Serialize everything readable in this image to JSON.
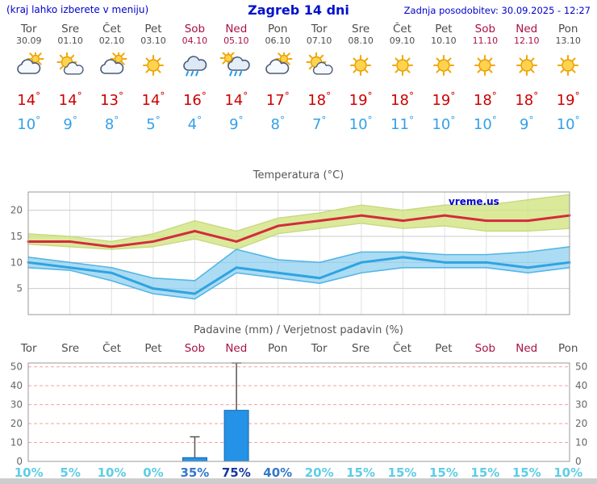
{
  "header": {
    "left_note": "(kraj lahko izberete v meniju)",
    "title": "Zagreb 14 dni",
    "updated": "Zadnja posodobitev: 30.09.2025 - 12:27"
  },
  "colors": {
    "link_blue": "#0000cc",
    "weekend_red": "#aa1144",
    "tmax_red": "#cc0000",
    "tmin_blue": "#33a0e8",
    "bar_blue": "#2492e6",
    "band_green": "rgba(210,228,130,0.8)",
    "band_blue": "rgba(135,205,240,0.7)"
  },
  "days": [
    {
      "name": "Tor",
      "date": "30.09",
      "weekend": false,
      "icon": "mostly-cloudy",
      "tmax": "14",
      "tmin": "10",
      "prob": "10%",
      "prob_level": "low"
    },
    {
      "name": "Sre",
      "date": "01.10",
      "weekend": false,
      "icon": "partly-cloudy",
      "tmax": "14",
      "tmin": "9",
      "prob": "5%",
      "prob_level": "low"
    },
    {
      "name": "Čet",
      "date": "02.10",
      "weekend": false,
      "icon": "mostly-cloudy",
      "tmax": "13",
      "tmin": "8",
      "prob": "10%",
      "prob_level": "low"
    },
    {
      "name": "Pet",
      "date": "03.10",
      "weekend": false,
      "icon": "sun",
      "tmax": "14",
      "tmin": "5",
      "prob": "0%",
      "prob_level": "low"
    },
    {
      "name": "Sob",
      "date": "04.10",
      "weekend": true,
      "icon": "rain",
      "tmax": "16",
      "tmin": "4",
      "prob": "35%",
      "prob_level": "mid"
    },
    {
      "name": "Ned",
      "date": "05.10",
      "weekend": true,
      "icon": "rain-sun",
      "tmax": "14",
      "tmin": "9",
      "prob": "75%",
      "prob_level": "high"
    },
    {
      "name": "Pon",
      "date": "06.10",
      "weekend": false,
      "icon": "mostly-cloudy",
      "tmax": "17",
      "tmin": "8",
      "prob": "40%",
      "prob_level": "mid"
    },
    {
      "name": "Tor",
      "date": "07.10",
      "weekend": false,
      "icon": "partly-cloudy",
      "tmax": "18",
      "tmin": "7",
      "prob": "20%",
      "prob_level": "low"
    },
    {
      "name": "Sre",
      "date": "08.10",
      "weekend": false,
      "icon": "sun",
      "tmax": "19",
      "tmin": "10",
      "prob": "15%",
      "prob_level": "low"
    },
    {
      "name": "Čet",
      "date": "09.10",
      "weekend": false,
      "icon": "sun",
      "tmax": "18",
      "tmin": "11",
      "prob": "15%",
      "prob_level": "low"
    },
    {
      "name": "Pet",
      "date": "10.10",
      "weekend": false,
      "icon": "sun",
      "tmax": "19",
      "tmin": "10",
      "prob": "15%",
      "prob_level": "low"
    },
    {
      "name": "Sob",
      "date": "11.10",
      "weekend": true,
      "icon": "sun",
      "tmax": "18",
      "tmin": "10",
      "prob": "15%",
      "prob_level": "low"
    },
    {
      "name": "Ned",
      "date": "12.10",
      "weekend": true,
      "icon": "sun",
      "tmax": "18",
      "tmin": "9",
      "prob": "15%",
      "prob_level": "low"
    },
    {
      "name": "Pon",
      "date": "13.10",
      "weekend": false,
      "icon": "sun",
      "tmax": "19",
      "tmin": "10",
      "prob": "10%",
      "prob_level": "low"
    }
  ],
  "chart_data": [
    {
      "type": "line",
      "title": "Temperatura (°C)",
      "watermark": "vreme.us",
      "x": [
        "Tor 30.09",
        "Sre 01.10",
        "Čet 02.10",
        "Pet 03.10",
        "Sob 04.10",
        "Ned 05.10",
        "Pon 06.10",
        "Tor 07.10",
        "Sre 08.10",
        "Čet 09.10",
        "Pet 10.10",
        "Sob 11.10",
        "Ned 12.10",
        "Pon 13.10"
      ],
      "series": [
        {
          "name": "tmax",
          "color": "#d22c3c",
          "values": [
            14,
            14,
            13,
            14,
            16,
            14,
            17,
            18,
            19,
            18,
            19,
            18,
            18,
            19
          ]
        },
        {
          "name": "tmax_upper",
          "color": "#c6d87c",
          "values": [
            15.5,
            15,
            14,
            15.5,
            18,
            16,
            18.5,
            19.5,
            21,
            20,
            21,
            21,
            22,
            23
          ]
        },
        {
          "name": "tmax_lower",
          "color": "#c6d87c",
          "values": [
            13.5,
            13,
            12.5,
            13,
            14.5,
            12.5,
            15.5,
            16.5,
            17.5,
            16.5,
            17,
            16,
            16,
            16.5
          ]
        },
        {
          "name": "tmin",
          "color": "#2fa3e0",
          "values": [
            10,
            9,
            8,
            5,
            4,
            9,
            8,
            7,
            10,
            11,
            10,
            10,
            9,
            10
          ]
        },
        {
          "name": "tmin_upper",
          "color": "#55b5e5",
          "values": [
            11,
            10,
            9,
            7,
            6.5,
            12.5,
            10.5,
            10,
            12,
            12,
            11.5,
            11.5,
            12,
            13
          ]
        },
        {
          "name": "tmin_lower",
          "color": "#55b5e5",
          "values": [
            9,
            8.5,
            6.5,
            4,
            3,
            8,
            7,
            6,
            8,
            9,
            9,
            9,
            8,
            9
          ]
        }
      ],
      "ylim": [
        0,
        23.5
      ],
      "yticks": [
        5,
        10,
        15,
        20
      ],
      "grid": true,
      "legend": "none"
    },
    {
      "type": "bar",
      "title": "Padavine (mm) / Verjetnost padavin (%)",
      "categories": [
        "Tor",
        "Sre",
        "Čet",
        "Pet",
        "Sob",
        "Ned",
        "Pon",
        "Tor",
        "Sre",
        "Čet",
        "Pet",
        "Sob",
        "Ned",
        "Pon"
      ],
      "weekend_flags": [
        false,
        false,
        false,
        false,
        true,
        true,
        false,
        false,
        false,
        false,
        false,
        true,
        true,
        false
      ],
      "values": [
        0,
        0,
        0,
        0,
        2,
        27,
        0,
        0,
        0,
        0,
        0,
        0,
        0,
        0
      ],
      "whisker_max": [
        0,
        0,
        0,
        0,
        13,
        52,
        0,
        0,
        0,
        0,
        0,
        0,
        0,
        0
      ],
      "probabilities": [
        10,
        5,
        10,
        0,
        35,
        75,
        40,
        20,
        15,
        15,
        15,
        15,
        15,
        10
      ],
      "ylim": [
        0,
        52
      ],
      "yticks": [
        0,
        10,
        20,
        30,
        40,
        50
      ],
      "grid": "dashed-pink",
      "legend": "none"
    }
  ]
}
